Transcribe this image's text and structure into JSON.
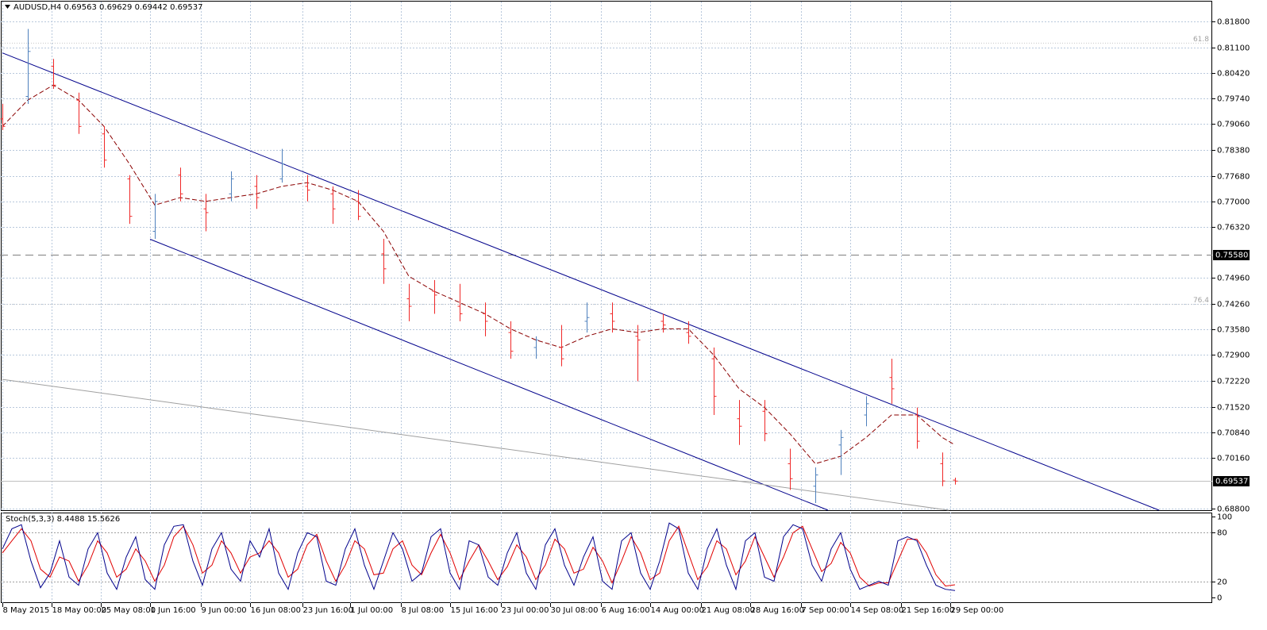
{
  "chart_data": [
    {
      "type": "ohlc",
      "title": "AUDUSD,H4",
      "x": [
        0,
        16,
        32,
        48,
        64,
        80,
        96,
        112,
        128,
        144,
        160,
        176,
        192,
        208,
        224,
        240,
        256,
        272,
        288,
        304,
        320,
        336,
        352,
        368,
        384,
        400,
        416,
        432,
        448,
        464,
        480,
        496,
        512,
        528,
        544,
        560,
        576,
        592,
        600
      ],
      "open": [
        0.792,
        0.798,
        0.806,
        0.797,
        0.788,
        0.776,
        0.762,
        0.777,
        0.768,
        0.772,
        0.774,
        0.776,
        0.774,
        0.772,
        0.77,
        0.756,
        0.744,
        0.746,
        0.742,
        0.74,
        0.735,
        0.731,
        0.731,
        0.738,
        0.74,
        0.734,
        0.738,
        0.735,
        0.728,
        0.712,
        0.714,
        0.7,
        0.694,
        0.705,
        0.713,
        0.723,
        0.713,
        0.7,
        0.69563
      ],
      "high": [
        0.796,
        0.816,
        0.808,
        0.799,
        0.79,
        0.777,
        0.772,
        0.779,
        0.772,
        0.778,
        0.777,
        0.784,
        0.777,
        0.774,
        0.773,
        0.76,
        0.748,
        0.749,
        0.748,
        0.743,
        0.738,
        0.734,
        0.737,
        0.743,
        0.743,
        0.737,
        0.74,
        0.738,
        0.731,
        0.717,
        0.717,
        0.704,
        0.699,
        0.709,
        0.718,
        0.728,
        0.715,
        0.703,
        0.69629
      ],
      "low": [
        0.789,
        0.796,
        0.8,
        0.788,
        0.779,
        0.764,
        0.76,
        0.77,
        0.762,
        0.77,
        0.768,
        0.775,
        0.77,
        0.764,
        0.765,
        0.748,
        0.738,
        0.74,
        0.738,
        0.734,
        0.728,
        0.728,
        0.726,
        0.735,
        0.735,
        0.722,
        0.735,
        0.732,
        0.713,
        0.705,
        0.706,
        0.693,
        0.6895,
        0.697,
        0.71,
        0.716,
        0.704,
        0.694,
        0.69442
      ],
      "close": [
        0.79,
        0.81,
        0.801,
        0.79,
        0.781,
        0.766,
        0.77,
        0.772,
        0.767,
        0.776,
        0.771,
        0.78,
        0.773,
        0.768,
        0.766,
        0.752,
        0.742,
        0.745,
        0.74,
        0.738,
        0.73,
        0.733,
        0.728,
        0.739,
        0.738,
        0.733,
        0.737,
        0.734,
        0.718,
        0.71,
        0.708,
        0.696,
        0.697,
        0.707,
        0.716,
        0.72,
        0.706,
        0.6954,
        0.69537
      ],
      "up_color": "#4f81bd",
      "down_color": "#f02828",
      "ma": {
        "color": "#8b0000",
        "values": [
          0.79,
          0.797,
          0.801,
          0.797,
          0.79,
          0.78,
          0.769,
          0.771,
          0.77,
          0.771,
          0.772,
          0.774,
          0.775,
          0.773,
          0.77,
          0.762,
          0.75,
          0.746,
          0.743,
          0.74,
          0.736,
          0.733,
          0.731,
          0.734,
          0.736,
          0.735,
          0.736,
          0.736,
          0.729,
          0.72,
          0.715,
          0.708,
          0.7,
          0.702,
          0.707,
          0.713,
          0.713,
          0.707,
          0.705
        ]
      },
      "trendlines": [
        {
          "color": "#00008b",
          "x": [
            0,
            728.5
          ],
          "y": [
            0.8096,
            0.6876
          ]
        },
        {
          "color": "#00008b",
          "x": [
            93,
            520
          ],
          "y": [
            0.7599,
            0.6876
          ]
        },
        {
          "color": "#a0a0a0",
          "x": [
            0,
            596
          ],
          "y": [
            0.7225,
            0.6876
          ]
        }
      ],
      "hlines": [
        {
          "value": 0.7558,
          "label": "0.75580",
          "color": "#808080",
          "dashed": true
        },
        {
          "value": 0.69537,
          "label": "0.69537",
          "color": "#c0c0c0",
          "dashed": false
        }
      ],
      "levels": [
        {
          "value": 0.8122,
          "label": "61.8"
        },
        {
          "value": 0.7425,
          "label": "76.4"
        }
      ],
      "xlim": [
        -1.5,
        762
      ],
      "ylim": [
        0.6876,
        0.8233
      ],
      "yticks": [
        {
          "value": 0.818,
          "label": "0.81800"
        },
        {
          "value": 0.811,
          "label": "0.81100"
        },
        {
          "value": 0.8042,
          "label": "0.80420"
        },
        {
          "value": 0.7974,
          "label": "0.79740"
        },
        {
          "value": 0.7906,
          "label": "0.79060"
        },
        {
          "value": 0.7838,
          "label": "0.78380"
        },
        {
          "value": 0.7768,
          "label": "0.77680"
        },
        {
          "value": 0.77,
          "label": "0.77000"
        },
        {
          "value": 0.7632,
          "label": "0.76320"
        },
        {
          "value": 0.7496,
          "label": "0.74960"
        },
        {
          "value": 0.7426,
          "label": "0.74260"
        },
        {
          "value": 0.7358,
          "label": "0.73580"
        },
        {
          "value": 0.729,
          "label": "0.72900"
        },
        {
          "value": 0.7222,
          "label": "0.72220"
        },
        {
          "value": 0.7152,
          "label": "0.71520"
        },
        {
          "value": 0.7084,
          "label": "0.70840"
        },
        {
          "value": 0.7016,
          "label": "0.70160"
        },
        {
          "value": 0.688,
          "label": "0.68800"
        }
      ],
      "xticks": [
        {
          "value": 0,
          "label": "8 May 2015"
        },
        {
          "value": 31,
          "label": "18 May 00:00"
        },
        {
          "value": 62,
          "label": "25 May 08:00"
        },
        {
          "value": 93,
          "label": "1 Jun 16:00"
        },
        {
          "value": 125,
          "label": "9 Jun 00:00"
        },
        {
          "value": 156,
          "label": "16 Jun 08:00"
        },
        {
          "value": 189,
          "label": "23 Jun 16:00"
        },
        {
          "value": 219,
          "label": "1 Jul 00:00"
        },
        {
          "value": 251,
          "label": "8 Jul 08:00"
        },
        {
          "value": 282,
          "label": "15 Jul 16:00"
        },
        {
          "value": 314,
          "label": "23 Jul 00:00"
        },
        {
          "value": 345,
          "label": "30 Jul 08:00"
        },
        {
          "value": 377,
          "label": "6 Aug 16:00"
        },
        {
          "value": 408,
          "label": "14 Aug 00:00"
        },
        {
          "value": 440,
          "label": "21 Aug 08:00"
        },
        {
          "value": 471,
          "label": "28 Aug 16:00"
        },
        {
          "value": 503,
          "label": "7 Sep 00:00"
        },
        {
          "value": 534,
          "label": "14 Sep 08:00"
        },
        {
          "value": 566,
          "label": "21 Sep 16:00"
        },
        {
          "value": 597,
          "label": "29 Sep 00:00"
        }
      ],
      "grid": true
    },
    {
      "type": "line",
      "title": "Stoch(5,3,3)",
      "x": [
        0,
        6,
        12,
        18,
        24,
        30,
        36,
        42,
        48,
        54,
        60,
        66,
        72,
        78,
        84,
        90,
        96,
        102,
        108,
        114,
        120,
        126,
        132,
        138,
        144,
        150,
        156,
        162,
        168,
        174,
        180,
        186,
        192,
        198,
        204,
        210,
        216,
        222,
        228,
        234,
        240,
        246,
        252,
        258,
        264,
        270,
        276,
        282,
        288,
        294,
        300,
        306,
        312,
        318,
        324,
        330,
        336,
        342,
        348,
        354,
        360,
        366,
        372,
        378,
        384,
        390,
        396,
        402,
        408,
        414,
        420,
        426,
        432,
        438,
        444,
        450,
        456,
        462,
        468,
        474,
        480,
        486,
        492,
        498,
        504,
        510,
        516,
        522,
        528,
        534,
        540,
        546,
        552,
        558,
        564,
        570,
        576,
        582,
        588,
        594,
        600
      ],
      "main": {
        "color": "#00008b",
        "values": [
          60,
          85,
          90,
          45,
          12,
          30,
          70,
          25,
          15,
          60,
          80,
          30,
          10,
          50,
          75,
          22,
          10,
          65,
          88,
          90,
          45,
          15,
          60,
          80,
          35,
          20,
          70,
          50,
          85,
          30,
          10,
          55,
          80,
          75,
          20,
          15,
          60,
          85,
          40,
          10,
          45,
          80,
          60,
          20,
          30,
          75,
          85,
          30,
          10,
          70,
          65,
          25,
          15,
          55,
          80,
          30,
          10,
          65,
          85,
          40,
          15,
          50,
          75,
          20,
          10,
          70,
          80,
          30,
          10,
          45,
          92,
          85,
          30,
          10,
          60,
          85,
          40,
          10,
          70,
          80,
          25,
          20,
          75,
          90,
          85,
          40,
          20,
          60,
          80,
          35,
          10,
          15,
          20,
          15,
          70,
          75,
          70,
          40,
          15,
          10,
          8.4488
        ]
      },
      "signal": {
        "color": "#e00000",
        "values": [
          55,
          70,
          85,
          70,
          35,
          25,
          50,
          45,
          20,
          40,
          70,
          55,
          25,
          35,
          60,
          45,
          20,
          40,
          75,
          88,
          65,
          30,
          40,
          70,
          55,
          30,
          50,
          55,
          70,
          55,
          25,
          35,
          65,
          78,
          45,
          20,
          40,
          70,
          60,
          28,
          30,
          60,
          70,
          40,
          28,
          55,
          78,
          55,
          22,
          45,
          65,
          45,
          22,
          38,
          65,
          50,
          22,
          40,
          72,
          60,
          30,
          35,
          62,
          45,
          18,
          45,
          75,
          55,
          22,
          30,
          70,
          88,
          55,
          22,
          38,
          70,
          60,
          28,
          45,
          75,
          50,
          25,
          50,
          80,
          88,
          60,
          32,
          42,
          68,
          55,
          25,
          14,
          18,
          18,
          45,
          72,
          72,
          55,
          28,
          14,
          15.5626
        ]
      },
      "ylim": [
        -7,
        105
      ],
      "yticks": [
        0,
        20,
        80,
        100
      ],
      "levels": [
        20,
        80
      ]
    }
  ]
}
